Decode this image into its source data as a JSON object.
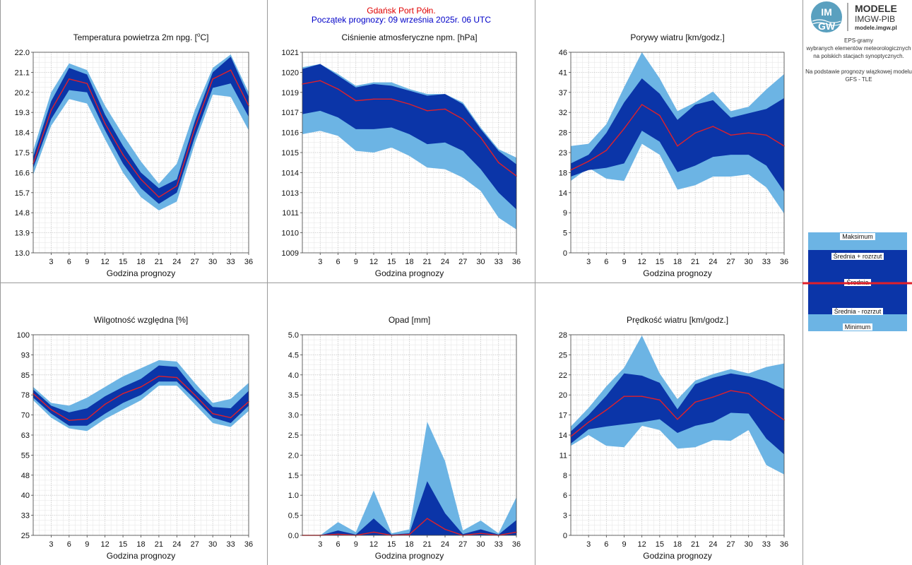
{
  "header": {
    "station": "Gdańsk Port Półn.",
    "forecast_start": "Początek prognozy: 09 września 2025r. 06 UTC",
    "station_color": "#e00000",
    "forecast_color": "#0000c8"
  },
  "logo": {
    "mark_top": "IM",
    "mark_bottom": "GW",
    "title": "MODELE",
    "subtitle": "IMGW-PIB",
    "url": "modele.imgw.pl"
  },
  "description": {
    "lines": [
      "EPS-gramy",
      "wybranych elementów meteorologicznych",
      "na polskich stacjach  synoptycznych.",
      "",
      "Na podstawie prognozy wiązkowej modelu",
      "GFS - TLE"
    ]
  },
  "legend": {
    "max": "Maksimum",
    "mean_plus": "Średnia + rozrzut",
    "mean": "Średnia",
    "mean_minus": "Średnia - rozrzut",
    "min": "Minimum"
  },
  "colors": {
    "outer_band": "#6cb4e4",
    "inner_band": "#0b35a8",
    "mean_line": "#e0202a",
    "grid": "#c8c8c8"
  },
  "chart_data": [
    {
      "id": "temperature",
      "type": "area",
      "title": "Temperatura powietrza 2m npg. [°C]",
      "xlabel": "Godzina prognozy",
      "xlim": [
        0,
        36
      ],
      "ylim": [
        13.0,
        22.0
      ],
      "yticks": [
        "13.0",
        "13.9",
        "14.8",
        "15.7",
        "16.6",
        "17.5",
        "18.4",
        "19.3",
        "20.2",
        "21.1",
        "22.0"
      ],
      "xticks": [
        "3",
        "6",
        "9",
        "12",
        "15",
        "18",
        "21",
        "24",
        "27",
        "30",
        "33",
        "36"
      ],
      "x": [
        0,
        3,
        6,
        9,
        12,
        15,
        18,
        21,
        24,
        27,
        30,
        33,
        36
      ],
      "min": [
        16.5,
        18.7,
        19.9,
        19.7,
        18.1,
        16.6,
        15.5,
        14.9,
        15.3,
        17.9,
        20.1,
        20.0,
        18.5
      ],
      "lower": [
        16.8,
        19.0,
        20.3,
        20.2,
        18.5,
        17.0,
        15.9,
        15.2,
        15.7,
        18.2,
        20.4,
        20.6,
        19.1
      ],
      "mean": [
        17.0,
        19.4,
        20.8,
        20.6,
        18.8,
        17.4,
        16.3,
        15.5,
        16.0,
        18.6,
        20.8,
        21.2,
        19.6
      ],
      "upper": [
        17.3,
        19.8,
        21.3,
        21.0,
        19.2,
        17.8,
        16.6,
        15.9,
        16.3,
        18.9,
        21.1,
        21.8,
        20.0
      ],
      "max": [
        17.6,
        20.2,
        21.5,
        21.2,
        19.6,
        18.3,
        17.1,
        16.1,
        17.0,
        19.4,
        21.3,
        21.9,
        20.2
      ]
    },
    {
      "id": "pressure",
      "type": "area",
      "title": "Ciśnienie atmosferyczne npm. [hPa]",
      "xlabel": "Godzina prognozy",
      "xlim": [
        0,
        36
      ],
      "ylim": [
        1009,
        1021
      ],
      "yticks": [
        "1009",
        "1010",
        "1011",
        "1013",
        "1014",
        "1015",
        "1016",
        "1017",
        "1019",
        "1020",
        "1021"
      ],
      "xticks": [
        "3",
        "6",
        "9",
        "12",
        "15",
        "18",
        "21",
        "24",
        "27",
        "30",
        "33",
        "36"
      ],
      "x": [
        0,
        3,
        6,
        9,
        12,
        15,
        18,
        21,
        24,
        27,
        30,
        33,
        36
      ],
      "min": [
        1016.1,
        1016.3,
        1016.0,
        1015.1,
        1015.0,
        1015.3,
        1014.8,
        1014.1,
        1014.0,
        1013.5,
        1012.7,
        1011.1,
        1010.4
      ],
      "lower": [
        1017.3,
        1017.5,
        1017.1,
        1016.4,
        1016.4,
        1016.5,
        1016.1,
        1015.5,
        1015.6,
        1015.1,
        1014.0,
        1012.6,
        1011.6
      ],
      "mean": [
        1019.1,
        1019.3,
        1018.8,
        1018.1,
        1018.2,
        1018.2,
        1017.9,
        1017.5,
        1017.6,
        1017.0,
        1015.9,
        1014.4,
        1013.6
      ],
      "upper": [
        1020.0,
        1020.3,
        1019.6,
        1018.9,
        1019.1,
        1019.0,
        1018.7,
        1018.4,
        1018.5,
        1017.9,
        1016.4,
        1015.1,
        1014.3
      ],
      "max": [
        1020.1,
        1020.3,
        1019.7,
        1019.0,
        1019.2,
        1019.2,
        1018.8,
        1018.5,
        1018.5,
        1018.0,
        1016.5,
        1015.2,
        1014.7
      ]
    },
    {
      "id": "gusts",
      "type": "area",
      "title": "Porywy wiatru [km/godz.]",
      "xlabel": "Godzina prognozy",
      "xlim": [
        0,
        36
      ],
      "ylim": [
        0,
        46
      ],
      "yticks": [
        "0",
        "5",
        "9",
        "14",
        "18",
        "23",
        "28",
        "32",
        "37",
        "41",
        "46"
      ],
      "xticks": [
        "3",
        "6",
        "9",
        "12",
        "15",
        "18",
        "21",
        "24",
        "27",
        "30",
        "33",
        "36"
      ],
      "x": [
        0,
        3,
        6,
        9,
        12,
        15,
        18,
        21,
        24,
        27,
        30,
        33,
        36
      ],
      "min": [
        16.5,
        19.5,
        17.0,
        16.5,
        25.0,
        22.5,
        14.5,
        15.5,
        17.5,
        17.5,
        18.0,
        15.0,
        9.0
      ],
      "lower": [
        17.5,
        19.0,
        19.5,
        20.5,
        28.0,
        25.5,
        18.5,
        20.0,
        22.0,
        22.5,
        22.5,
        20.0,
        14.0
      ],
      "mean": [
        19.0,
        21.0,
        23.5,
        28.5,
        34.0,
        31.5,
        24.5,
        27.5,
        29.0,
        27.0,
        27.5,
        27.0,
        24.5
      ],
      "upper": [
        20.5,
        22.5,
        27.5,
        34.5,
        40.0,
        36.5,
        30.5,
        34.0,
        35.0,
        31.0,
        32.0,
        33.0,
        35.5
      ],
      "max": [
        24.5,
        25.0,
        29.5,
        38.0,
        46.0,
        40.0,
        32.5,
        34.5,
        37.0,
        32.5,
        33.5,
        37.5,
        41.0
      ]
    },
    {
      "id": "humidity",
      "type": "area",
      "title": "Wilgotność względna [%]",
      "xlabel": "Godzina prognozy",
      "xlim": [
        0,
        36
      ],
      "ylim": [
        25,
        100
      ],
      "yticks": [
        "25",
        "33",
        "40",
        "48",
        "55",
        "63",
        "70",
        "78",
        "85",
        "93",
        "100"
      ],
      "xticks": [
        "3",
        "6",
        "9",
        "12",
        "15",
        "18",
        "21",
        "24",
        "27",
        "30",
        "33",
        "36"
      ],
      "x": [
        0,
        3,
        6,
        9,
        12,
        15,
        18,
        21,
        24,
        27,
        30,
        33,
        36
      ],
      "min": [
        75.5,
        69.0,
        65.0,
        64.0,
        68.5,
        72.0,
        75.5,
        81.0,
        81.0,
        74.0,
        67.0,
        65.5,
        71.5
      ],
      "lower": [
        76.5,
        70.5,
        66.0,
        66.0,
        70.5,
        74.5,
        77.5,
        82.5,
        82.5,
        76.0,
        69.0,
        67.0,
        73.5
      ],
      "mean": [
        78.0,
        72.0,
        68.0,
        68.5,
        74.0,
        78.0,
        80.5,
        84.5,
        84.0,
        77.5,
        70.5,
        69.0,
        75.0
      ],
      "upper": [
        79.5,
        73.5,
        71.0,
        72.5,
        77.0,
        80.5,
        83.5,
        88.5,
        88.0,
        79.5,
        73.0,
        72.5,
        79.0
      ],
      "max": [
        80.5,
        74.5,
        73.5,
        76.5,
        80.5,
        84.5,
        87.5,
        90.5,
        90.0,
        82.0,
        74.5,
        76.0,
        82.0
      ]
    },
    {
      "id": "precipitation",
      "type": "area",
      "title": "Opad [mm]",
      "xlabel": "Godzina prognozy",
      "xlim": [
        0,
        36
      ],
      "ylim": [
        0.0,
        5.0
      ],
      "yticks": [
        "0.0",
        "0.5",
        "1.0",
        "1.5",
        "2.0",
        "2.5",
        "3.0",
        "3.5",
        "4.0",
        "4.5",
        "5.0"
      ],
      "xticks": [
        "3",
        "6",
        "9",
        "12",
        "15",
        "18",
        "21",
        "24",
        "27",
        "30",
        "33",
        "36"
      ],
      "x": [
        0,
        3,
        6,
        9,
        12,
        15,
        18,
        21,
        24,
        27,
        30,
        33,
        36
      ],
      "min": [
        0,
        0,
        0,
        0,
        0,
        0,
        0,
        0,
        0,
        0,
        0,
        0,
        0
      ],
      "lower": [
        0,
        0,
        0,
        0,
        0,
        0,
        0,
        0,
        0,
        0,
        0,
        0,
        0
      ],
      "mean": [
        0,
        0,
        0.03,
        0,
        0.08,
        0,
        0.02,
        0.42,
        0.15,
        0,
        0.05,
        0,
        0.08
      ],
      "upper": [
        0,
        0,
        0.12,
        0.02,
        0.42,
        0.02,
        0.05,
        1.35,
        0.55,
        0.03,
        0.15,
        0.02,
        0.38
      ],
      "max": [
        0,
        0,
        0.33,
        0.08,
        1.12,
        0.05,
        0.15,
        2.83,
        1.85,
        0.12,
        0.37,
        0.05,
        0.95
      ]
    },
    {
      "id": "wind_speed",
      "type": "area",
      "title": "Prędkość wiatru [km/godz.]",
      "xlabel": "Godzina prognozy",
      "xlim": [
        0,
        36
      ],
      "ylim": [
        0,
        28
      ],
      "yticks": [
        "0",
        "3",
        "6",
        "8",
        "11",
        "14",
        "17",
        "20",
        "22",
        "25",
        "28"
      ],
      "xticks": [
        "3",
        "6",
        "9",
        "12",
        "15",
        "18",
        "21",
        "24",
        "27",
        "30",
        "33",
        "36"
      ],
      "x": [
        0,
        3,
        6,
        9,
        12,
        15,
        18,
        21,
        24,
        27,
        30,
        33,
        36
      ],
      "min": [
        12.5,
        14.0,
        12.5,
        12.3,
        15.3,
        14.7,
        12.1,
        12.3,
        13.3,
        13.2,
        14.7,
        9.8,
        8.5
      ],
      "lower": [
        12.8,
        14.8,
        15.2,
        15.5,
        15.8,
        16.2,
        14.3,
        15.3,
        15.8,
        17.1,
        17.0,
        13.5,
        11.3
      ],
      "mean": [
        13.8,
        15.8,
        17.5,
        19.4,
        19.4,
        18.9,
        16.2,
        18.6,
        19.3,
        20.2,
        19.8,
        17.8,
        16.1
      ],
      "upper": [
        14.5,
        16.8,
        19.5,
        22.6,
        22.3,
        21.3,
        17.6,
        21.1,
        22.0,
        22.6,
        22.2,
        21.5,
        20.4
      ],
      "max": [
        15.2,
        17.8,
        20.8,
        23.4,
        27.9,
        22.6,
        19.0,
        21.6,
        22.5,
        23.2,
        22.6,
        23.5,
        24.0
      ]
    }
  ]
}
